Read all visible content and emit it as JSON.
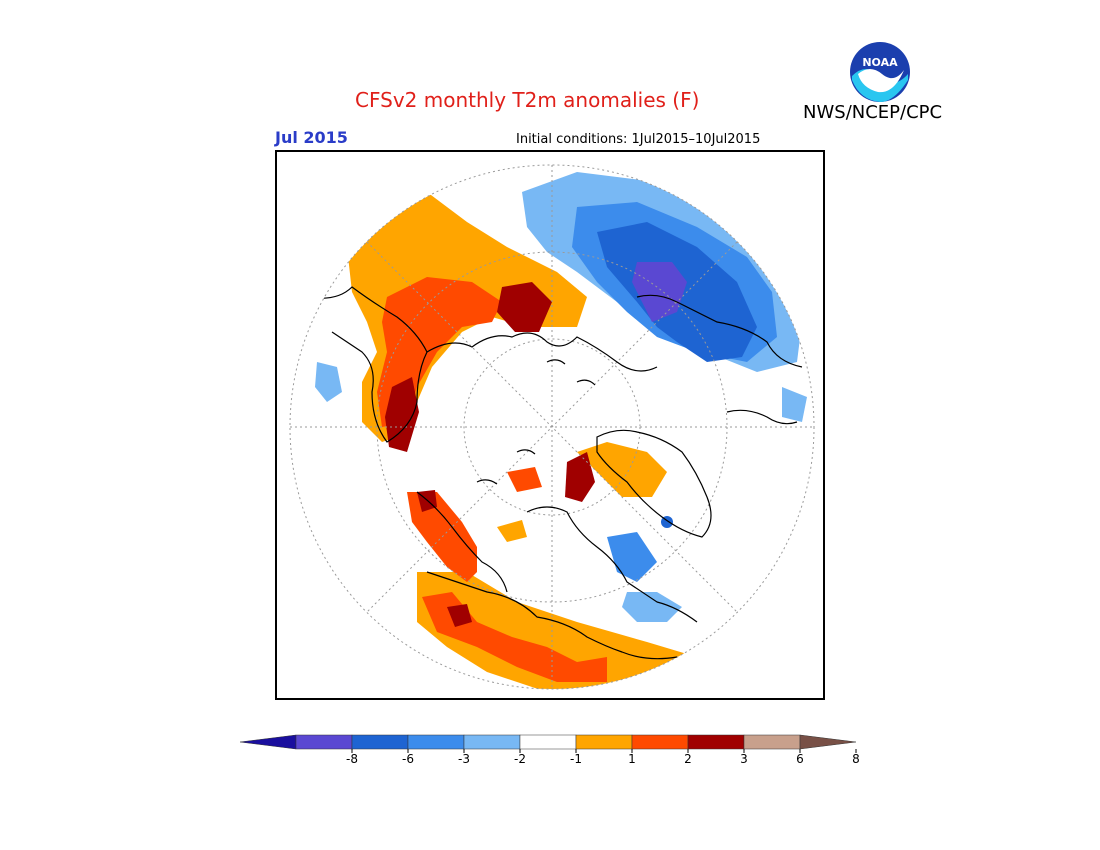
{
  "title": "CFSv2 monthly T2m anomalies (F)",
  "organization": "NWS/NCEP/CPC",
  "logo_text": "NOAA",
  "month": "Jul 2015",
  "initial_conditions": "Initial conditions: 1Jul2015–10Jul2015",
  "map": {
    "projection": "north-polar-stereographic",
    "colors": {
      "land_outline": "#000000",
      "ocean": "#ffffff",
      "graticule": "#9a9a9a"
    }
  },
  "legend": {
    "labels": [
      "-8",
      "-6",
      "-3",
      "-2",
      "-1",
      "1",
      "2",
      "3",
      "6",
      "8"
    ],
    "colors": [
      "#1a0f9e",
      "#5a48d2",
      "#1e64d2",
      "#3c8cec",
      "#78b8f4",
      "#ffffff",
      "#ffa500",
      "#ff4a00",
      "#a00000",
      "#c8a08c",
      "#785046"
    ]
  }
}
